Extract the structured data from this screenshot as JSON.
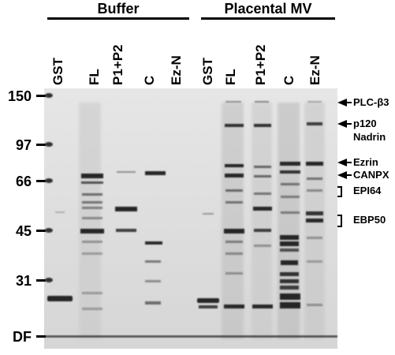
{
  "groups": [
    {
      "label": "Buffer"
    },
    {
      "label": "Placental MV"
    }
  ],
  "lanes": [
    "GST",
    "FL",
    "P1+P2",
    "C",
    "Ez-N",
    "GST",
    "FL",
    "P1+P2",
    "C",
    "Ez-N"
  ],
  "mw_markers": [
    "150",
    "97",
    "66",
    "45",
    "31",
    "DF"
  ],
  "band_labels": {
    "plc": "PLC-β3",
    "p120": "p120",
    "nadrin": "Nadrin",
    "ezrin": "Ezrin",
    "canpx": "CANPX",
    "epi64": "EPI64",
    "ebp50": "EBP50"
  },
  "colors": {
    "gel_background": "#dcdcdc",
    "band": "#1a1a1a",
    "text": "#000000"
  }
}
